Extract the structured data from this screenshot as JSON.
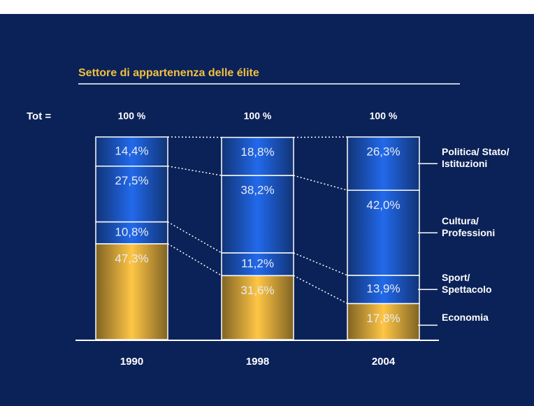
{
  "chart_data": {
    "type": "stacked_bar",
    "title": "Settore di appartenenza delle élite",
    "total_caption": "Tot =",
    "total_labels": [
      "100 %",
      "100 %",
      "100 %"
    ],
    "categories": [
      "1990",
      "1998",
      "2004"
    ],
    "ylim": [
      0,
      100
    ],
    "series": [
      {
        "name": "Economia",
        "color": "#e8b440",
        "values": [
          47.3,
          31.6,
          17.8
        ],
        "value_labels": [
          "47,3%",
          "31,6%",
          "17,8%"
        ]
      },
      {
        "name": "Sport/ Spettacolo",
        "color": "#1f5fd6",
        "values": [
          10.8,
          11.2,
          13.9
        ],
        "value_labels": [
          "10,8%",
          "11,2%",
          "13,9%"
        ]
      },
      {
        "name": "Cultura/ Professioni",
        "color": "#1f5fd6",
        "values": [
          27.5,
          38.2,
          42.0
        ],
        "value_labels": [
          "27,5%",
          "38,2%",
          "42,0%"
        ]
      },
      {
        "name": "Politica/ Stato/ Istituzioni",
        "color": "#1f5fd6",
        "values": [
          14.4,
          18.8,
          26.3
        ],
        "value_labels": [
          "14,4%",
          "18,8%",
          "26,3%"
        ]
      }
    ]
  }
}
